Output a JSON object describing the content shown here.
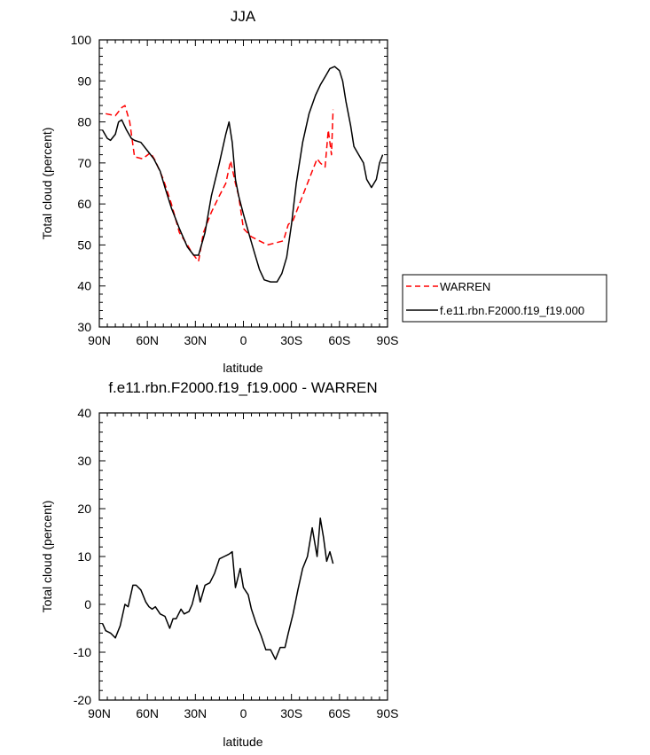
{
  "chart_data": [
    {
      "type": "line",
      "title": "JJA",
      "xlabel": "latitude",
      "ylabel": "Total cloud (percent)",
      "xlim": [
        90,
        -90
      ],
      "ylim": [
        30,
        100
      ],
      "x_ticks": [
        {
          "value": 90,
          "label": "90N"
        },
        {
          "value": 60,
          "label": "60N"
        },
        {
          "value": 30,
          "label": "30N"
        },
        {
          "value": 0,
          "label": "0"
        },
        {
          "value": -30,
          "label": "30S"
        },
        {
          "value": -60,
          "label": "60S"
        },
        {
          "value": -90,
          "label": "90S"
        }
      ],
      "y_ticks": [
        {
          "value": 30,
          "label": "30"
        },
        {
          "value": 40,
          "label": "40"
        },
        {
          "value": 50,
          "label": "50"
        },
        {
          "value": 60,
          "label": "60"
        },
        {
          "value": 70,
          "label": "70"
        },
        {
          "value": 80,
          "label": "80"
        },
        {
          "value": 90,
          "label": "90"
        },
        {
          "value": 100,
          "label": "100"
        }
      ],
      "legend": "outside-right",
      "series": [
        {
          "name": "WARREN",
          "color": "#ff0000",
          "dashed": true,
          "x": [
            86,
            80,
            76,
            74,
            71,
            68,
            63,
            58,
            55,
            50,
            45,
            40,
            35,
            32,
            28,
            25,
            20,
            15,
            11,
            8,
            5,
            3,
            0,
            -5,
            -10,
            -15,
            -20,
            -25,
            -28,
            -31,
            -35,
            -40,
            -43,
            -46,
            -48,
            -51,
            -53,
            -55,
            -56
          ],
          "y": [
            82,
            81.5,
            83.5,
            84,
            80,
            71.5,
            71,
            72.5,
            70.5,
            66,
            60,
            53,
            50,
            48,
            46,
            53,
            58,
            62,
            65,
            70.5,
            65,
            62,
            54,
            52,
            51,
            50,
            50.5,
            51,
            55,
            56,
            60,
            65,
            68,
            71,
            70,
            69,
            78,
            72,
            83
          ]
        },
        {
          "name": "f.e11.rbn.F2000.f19_f19.000",
          "color": "#000000",
          "dashed": false,
          "x": [
            88,
            85,
            83,
            80,
            78,
            76,
            73,
            70,
            68,
            64,
            60,
            56,
            52,
            49,
            45,
            40,
            35,
            31,
            28,
            24,
            20,
            15,
            11,
            9,
            7,
            5,
            3,
            0,
            -4,
            -7,
            -10,
            -13,
            -17,
            -21,
            -24,
            -27,
            -30,
            -33,
            -37,
            -41,
            -45,
            -48,
            -51,
            -54,
            -57,
            -60,
            -62,
            -64,
            -67,
            -69,
            -72,
            -75,
            -77,
            -80,
            -83,
            -85,
            -87
          ],
          "y": [
            78,
            76,
            75.5,
            77,
            80,
            80.5,
            78,
            76,
            75.5,
            75,
            73,
            71,
            68,
            64,
            59,
            54,
            49.5,
            47.5,
            47.5,
            53,
            62,
            70,
            77,
            80,
            75,
            66,
            62,
            57.5,
            52,
            48,
            44,
            41.5,
            41,
            41,
            43,
            47,
            55,
            65,
            75,
            82,
            86.5,
            89,
            91,
            93,
            93.5,
            92.5,
            90,
            85,
            79,
            74,
            72,
            70,
            66,
            64,
            66,
            70,
            72
          ]
        }
      ]
    },
    {
      "type": "line",
      "title": "f.e11.rbn.F2000.f19_f19.000 - WARREN",
      "xlabel": "latitude",
      "ylabel": "Total cloud (percent)",
      "xlim": [
        90,
        -90
      ],
      "ylim": [
        -20,
        40
      ],
      "x_ticks": [
        {
          "value": 90,
          "label": "90N"
        },
        {
          "value": 60,
          "label": "60N"
        },
        {
          "value": 30,
          "label": "30N"
        },
        {
          "value": 0,
          "label": "0"
        },
        {
          "value": -30,
          "label": "30S"
        },
        {
          "value": -60,
          "label": "60S"
        },
        {
          "value": -90,
          "label": "90S"
        }
      ],
      "y_ticks": [
        {
          "value": -20,
          "label": "-20"
        },
        {
          "value": -10,
          "label": "-10"
        },
        {
          "value": 0,
          "label": "0"
        },
        {
          "value": 10,
          "label": "10"
        },
        {
          "value": 20,
          "label": "20"
        },
        {
          "value": 30,
          "label": "30"
        },
        {
          "value": 40,
          "label": "40"
        }
      ],
      "series": [
        {
          "color": "#000000",
          "dashed": false,
          "x": [
            88,
            86,
            83,
            80,
            77,
            74,
            72,
            69,
            67,
            64,
            61,
            59,
            57,
            55,
            52,
            49,
            46,
            44,
            42,
            39,
            37,
            34,
            32,
            29,
            27,
            24,
            21,
            18,
            15,
            12,
            9,
            7,
            5,
            2,
            0,
            -3,
            -5,
            -8,
            -11,
            -14,
            -17,
            -20,
            -23,
            -26,
            -28,
            -31,
            -34,
            -37,
            -40,
            -43,
            -46,
            -48,
            -50,
            -52,
            -54,
            -56
          ],
          "y": [
            -4,
            -5.5,
            -6,
            -7,
            -4.5,
            0,
            -0.5,
            4,
            4,
            3,
            0.5,
            -0.5,
            -1,
            -0.5,
            -2,
            -2.5,
            -5,
            -3,
            -3,
            -1,
            -2,
            -1.5,
            0,
            4,
            0.5,
            4,
            4.5,
            6.5,
            9.5,
            10,
            10.5,
            11,
            3.5,
            7.5,
            3.5,
            2,
            -1,
            -4,
            -6.5,
            -9.5,
            -9.5,
            -11.5,
            -9,
            -9,
            -6,
            -2,
            3,
            7.5,
            10,
            16,
            10,
            18,
            14,
            9,
            11,
            8.5
          ]
        }
      ]
    }
  ]
}
